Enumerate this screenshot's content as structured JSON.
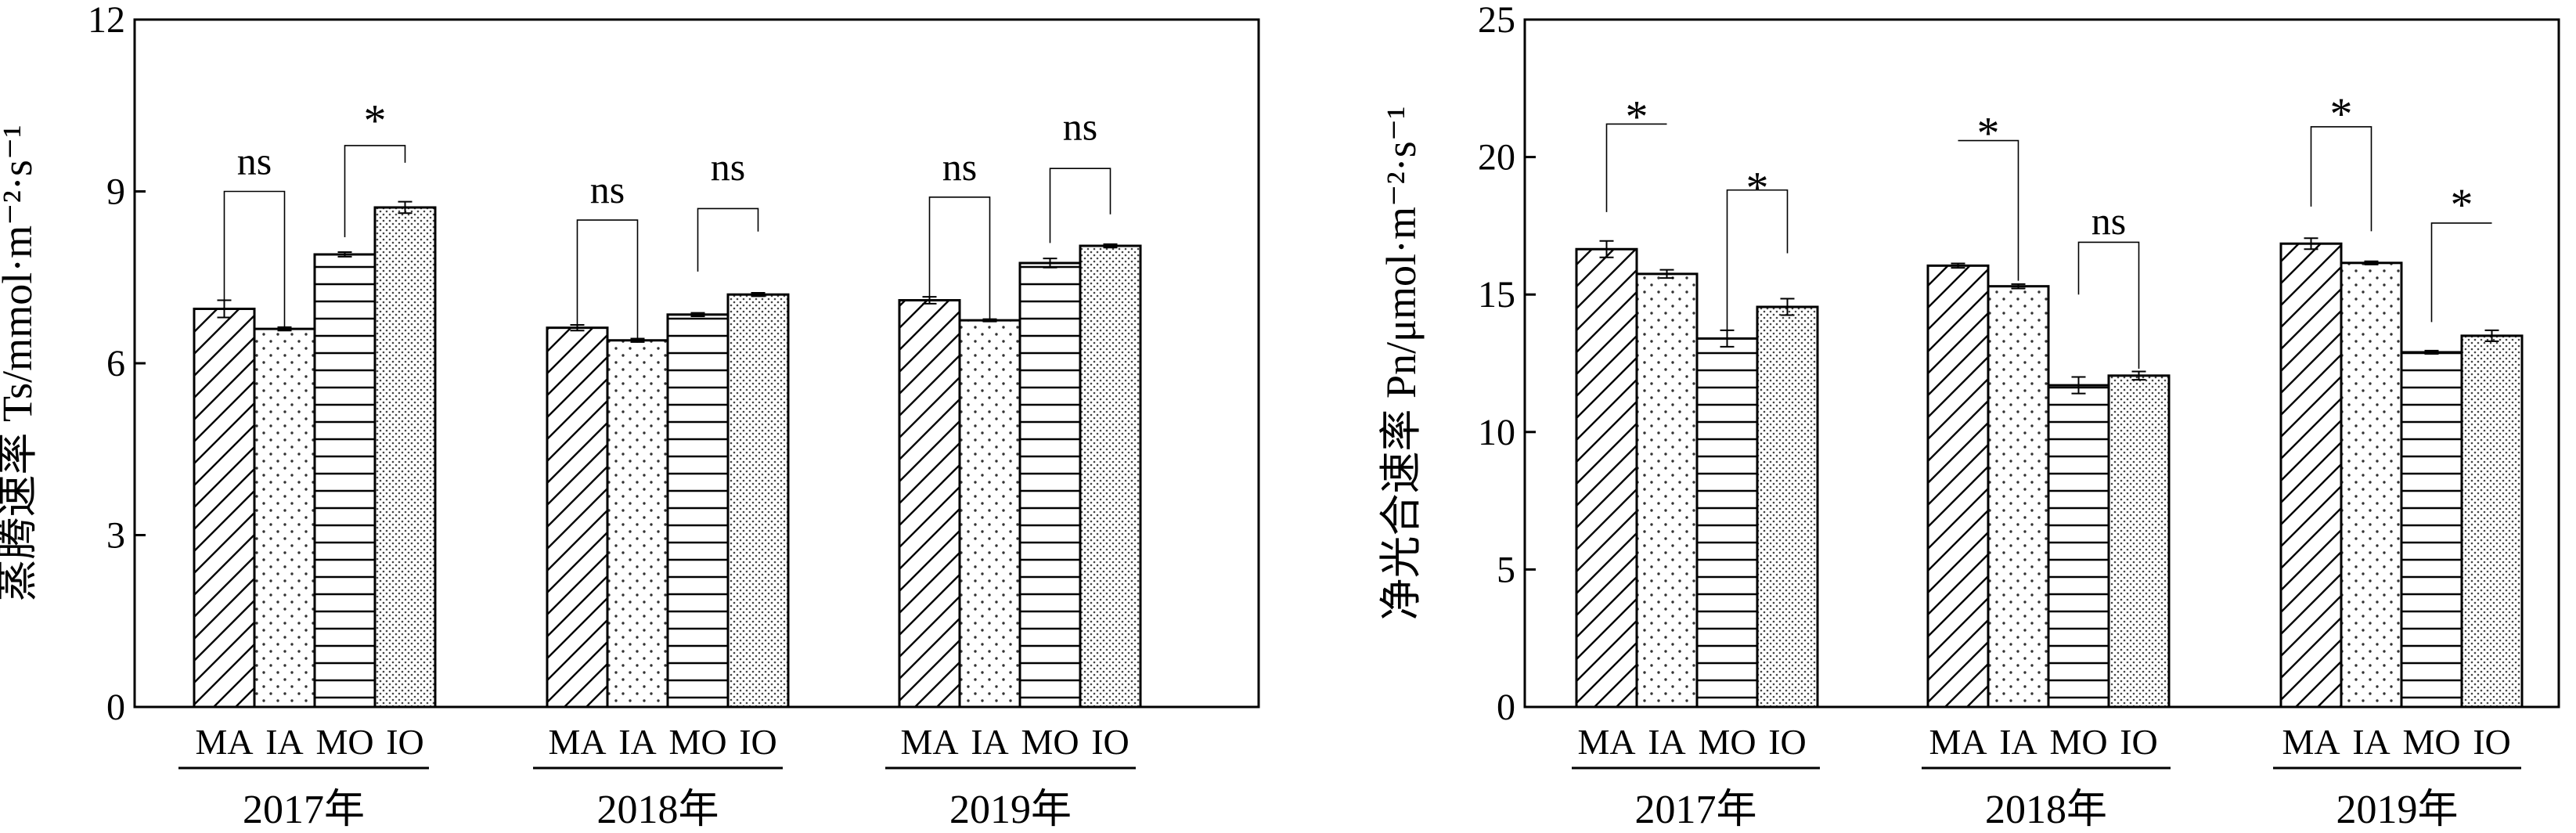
{
  "chart_data": [
    {
      "type": "bar",
      "ylabel": "蒸腾速率 Ts/mmol·m⁻²·s⁻¹",
      "ylim": [
        0,
        12
      ],
      "yticks": [
        0,
        3,
        6,
        9,
        12
      ],
      "categories": [
        "2017年",
        "2018年",
        "2019年"
      ],
      "series": [
        {
          "name": "MA",
          "pattern": "diagonal",
          "values": [
            6.95,
            6.62,
            7.1
          ],
          "errors": [
            0.15,
            0.05,
            0.06
          ]
        },
        {
          "name": "IA",
          "pattern": "dots",
          "values": [
            6.6,
            6.4,
            6.75
          ],
          "errors": [
            0.03,
            0.03,
            0.02
          ]
        },
        {
          "name": "MO",
          "pattern": "horizontal",
          "values": [
            7.9,
            6.85,
            7.75
          ],
          "errors": [
            0.04,
            0.03,
            0.08
          ]
        },
        {
          "name": "IO",
          "pattern": "fine-dots",
          "values": [
            8.72,
            7.2,
            8.05
          ],
          "errors": [
            0.1,
            0.03,
            0.03
          ]
        }
      ],
      "annotations": [
        {
          "group": 0,
          "pair": [
            0,
            1
          ],
          "label": "ns",
          "label_y": 9.3,
          "line_top": 9.0,
          "left_end": 6.95,
          "right_end": 6.6
        },
        {
          "group": 0,
          "pair": [
            2,
            3
          ],
          "label": "*",
          "label_y": 10.3,
          "line_top": 9.8,
          "left_end": 8.2,
          "right_end": 9.5
        },
        {
          "group": 1,
          "pair": [
            0,
            1
          ],
          "label": "ns",
          "label_y": 8.8,
          "line_top": 8.5,
          "left_end": 6.62,
          "right_end": 6.4
        },
        {
          "group": 1,
          "pair": [
            2,
            3
          ],
          "label": "ns",
          "label_y": 9.2,
          "line_top": 8.7,
          "left_end": 7.6,
          "right_end": 8.3
        },
        {
          "group": 2,
          "pair": [
            0,
            1
          ],
          "label": "ns",
          "label_y": 9.2,
          "line_top": 8.9,
          "left_end": 7.1,
          "right_end": 6.75
        },
        {
          "group": 2,
          "pair": [
            2,
            3
          ],
          "label": "ns",
          "label_y": 9.9,
          "line_top": 9.4,
          "left_end": 8.1,
          "right_end": 8.6
        }
      ]
    },
    {
      "type": "bar",
      "ylabel": "净光合速率 Pn/μmol·m⁻²·s⁻¹",
      "ylim": [
        0,
        25
      ],
      "yticks": [
        0,
        5,
        10,
        15,
        20,
        25
      ],
      "categories": [
        "2017年",
        "2018年",
        "2019年"
      ],
      "series": [
        {
          "name": "MA",
          "pattern": "diagonal",
          "values": [
            16.65,
            16.05,
            16.85
          ],
          "errors": [
            0.3,
            0.08,
            0.2
          ]
        },
        {
          "name": "IA",
          "pattern": "dots",
          "values": [
            15.75,
            15.3,
            16.15
          ],
          "errors": [
            0.15,
            0.08,
            0.06
          ]
        },
        {
          "name": "MO",
          "pattern": "horizontal",
          "values": [
            13.4,
            11.7,
            12.9
          ],
          "errors": [
            0.3,
            0.3,
            0.06
          ]
        },
        {
          "name": "IO",
          "pattern": "fine-dots",
          "values": [
            14.55,
            12.05,
            13.5
          ],
          "errors": [
            0.3,
            0.15,
            0.2
          ]
        }
      ],
      "annotations": [
        {
          "group": 0,
          "pair": [
            0,
            1
          ],
          "label": "*",
          "label_y": 21.6,
          "line_top": 21.2,
          "left_end": 18.0,
          "right_end": 21.2
        },
        {
          "group": 0,
          "pair": [
            2,
            3
          ],
          "label": "*",
          "label_y": 19.0,
          "line_top": 18.8,
          "left_end": 13.4,
          "right_end": 16.5
        },
        {
          "group": 1,
          "pair": [
            0,
            1
          ],
          "label": "*",
          "label_y": 21.0,
          "line_top": 20.6,
          "left_end": 20.6,
          "right_end": 15.5
        },
        {
          "group": 1,
          "pair": [
            2,
            3
          ],
          "label": "ns",
          "label_y": 17.2,
          "line_top": 16.9,
          "left_end": 15.0,
          "right_end": 12.3
        },
        {
          "group": 2,
          "pair": [
            0,
            1
          ],
          "label": "*",
          "label_y": 21.7,
          "line_top": 21.1,
          "left_end": 18.2,
          "right_end": 17.3
        },
        {
          "group": 2,
          "pair": [
            2,
            3
          ],
          "label": "*",
          "label_y": 18.4,
          "line_top": 17.6,
          "left_end": 14.0,
          "right_end": 17.6
        }
      ]
    }
  ]
}
